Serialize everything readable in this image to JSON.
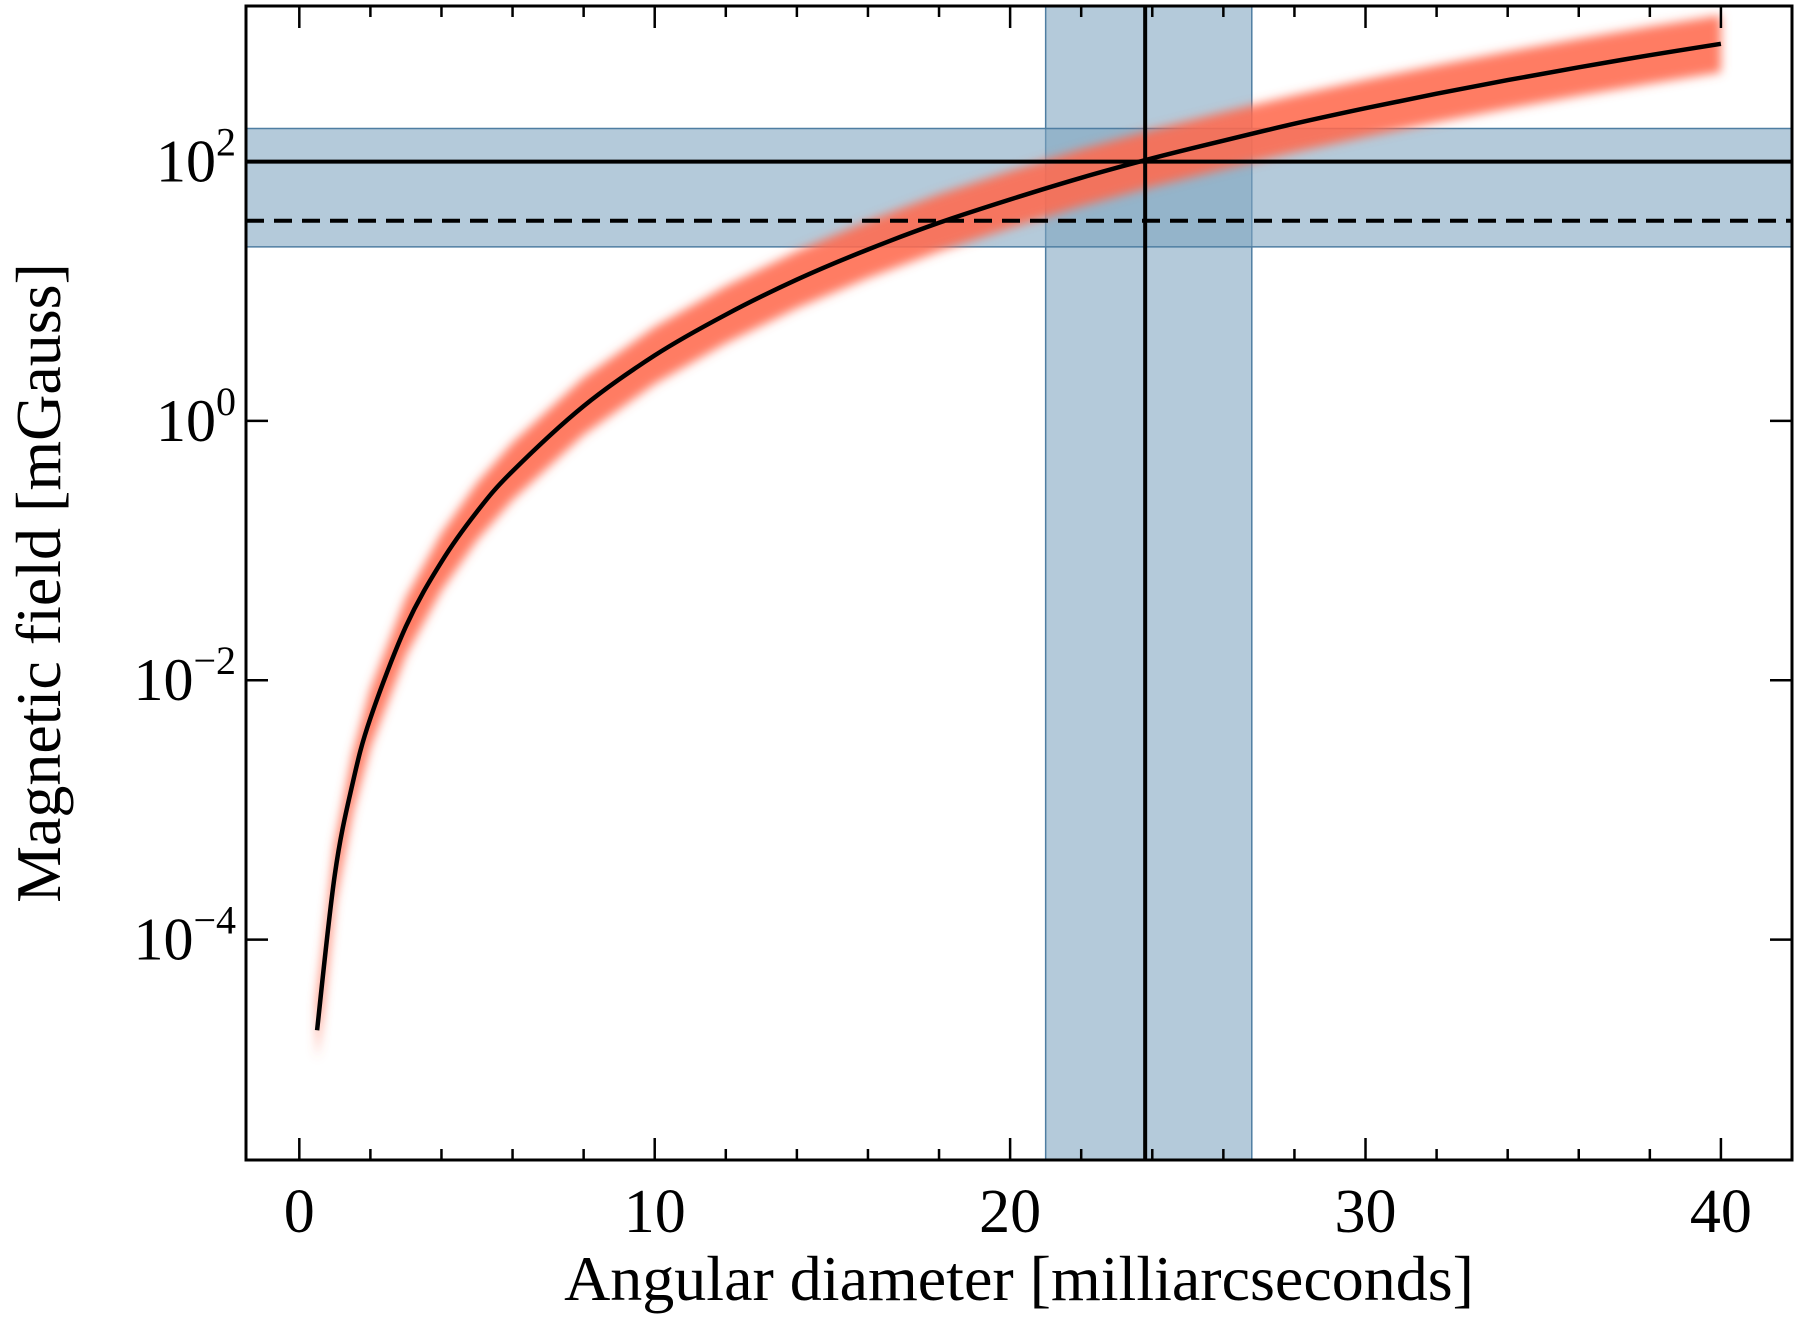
{
  "chart_data": {
    "type": "line",
    "title": "",
    "xlabel": "Angular diameter [milliarcseconds]",
    "ylabel": "Magnetic field [mGauss]",
    "xlim": [
      -1.5,
      42
    ],
    "ylim_log10": [
      -5.7,
      3.2
    ],
    "y_scale": "log",
    "grid": false,
    "x_ticks": [
      {
        "value": 0,
        "label": "0"
      },
      {
        "value": 10,
        "label": "10"
      },
      {
        "value": 20,
        "label": "20"
      },
      {
        "value": 30,
        "label": "30"
      },
      {
        "value": 40,
        "label": "40"
      }
    ],
    "y_ticks": [
      {
        "exp": -4,
        "base": "10",
        "sup": "−4"
      },
      {
        "exp": -2,
        "base": "10",
        "sup": "−2"
      },
      {
        "exp": 0,
        "base": "10",
        "sup": "0"
      },
      {
        "exp": 2,
        "base": "10",
        "sup": "2"
      }
    ],
    "model_curve": {
      "x": [
        0.5,
        1,
        1.5,
        2,
        3,
        4,
        5,
        6,
        8,
        10,
        12,
        14,
        16,
        18,
        20,
        22,
        24,
        26,
        28,
        30,
        32,
        34,
        36,
        38,
        40
      ],
      "y": [
        2e-05,
        0.00032,
        0.0016,
        0.0051,
        0.026,
        0.082,
        0.2,
        0.41,
        1.3,
        3.2,
        6.6,
        12.3,
        21,
        33.7,
        51,
        75,
        106,
        145,
        196,
        258,
        334,
        425,
        534,
        662,
        810
      ],
      "band_log10_halfwidth": 0.22,
      "color": "#ff6a4d"
    },
    "vertical_measurement": {
      "x": 23.8,
      "x_low": 21.0,
      "x_high": 26.8
    },
    "horizontal_measurement": {
      "y": 100,
      "y_low": 22,
      "y_high": 180
    },
    "dashed_reference": {
      "y": 35
    },
    "band_color": "#7ea3bf"
  }
}
